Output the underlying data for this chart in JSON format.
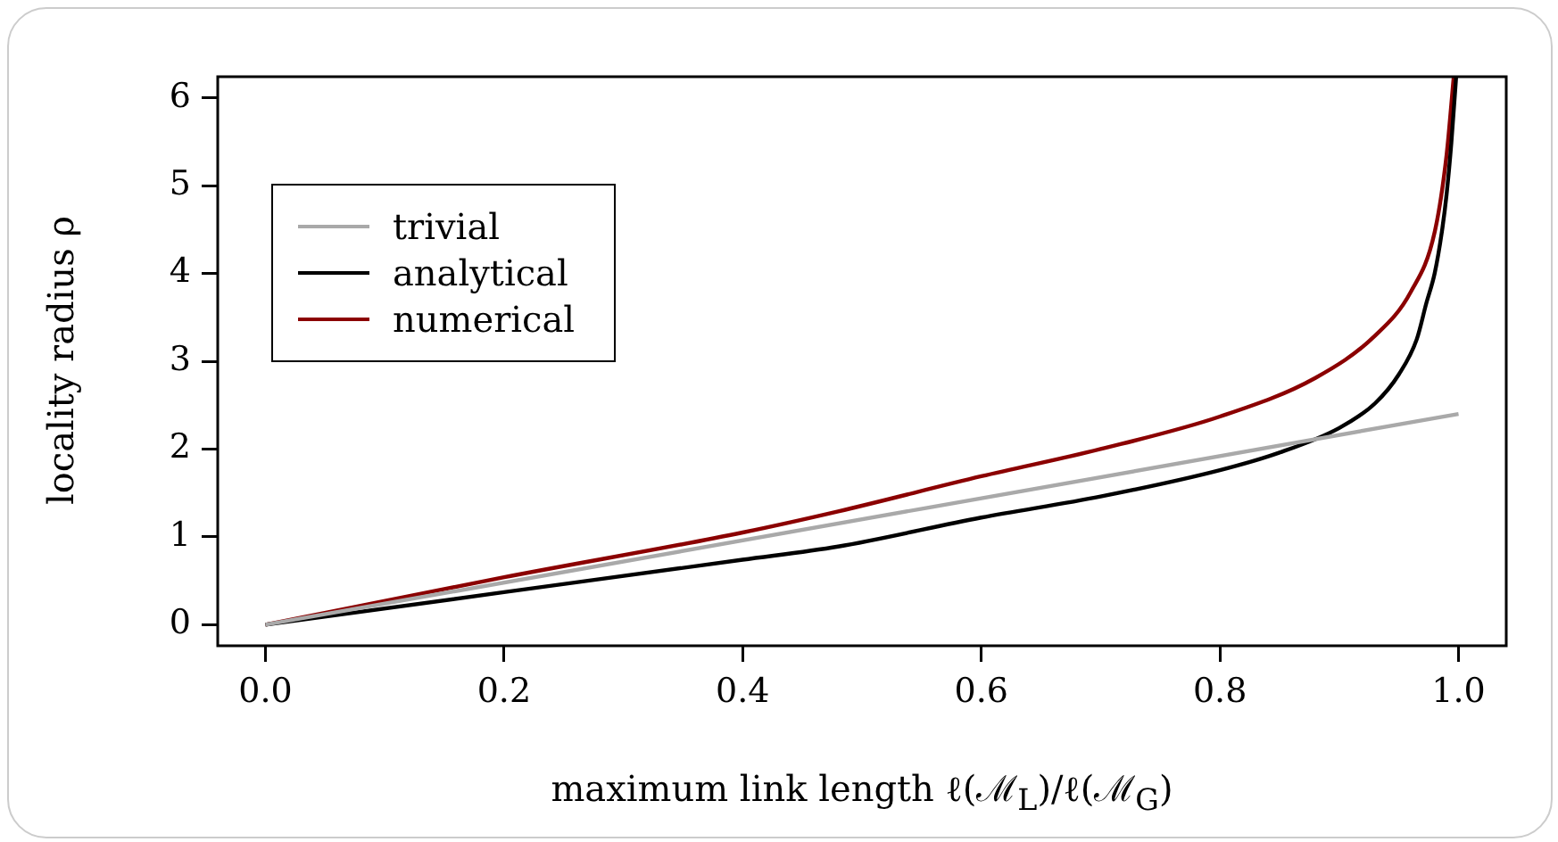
{
  "chart_data": {
    "type": "line",
    "xlabel": "maximum link length ℓ(ℳ$_{L}$)/ℓ(ℳ$_{G}$)",
    "ylabel": "locality radius ρ",
    "xlim": [
      -0.04,
      1.04
    ],
    "xticks": [
      {
        "value": 0,
        "label": "0.0"
      },
      {
        "value": 0.2,
        "label": "0.2"
      },
      {
        "value": 0.4,
        "label": "0.4"
      },
      {
        "value": 0.6,
        "label": "0.6"
      },
      {
        "value": 0.8,
        "label": "0.8"
      },
      {
        "value": 1,
        "label": "1.0"
      }
    ],
    "ylim": [
      -0.24,
      6.24
    ],
    "yticks": [
      0,
      1,
      2,
      3,
      4,
      5,
      6
    ],
    "grid": false,
    "legend": "top left",
    "marker": "none",
    "line_style": "solid",
    "series": [
      {
        "name": "trivial",
        "color": "#a9a9a9",
        "x": [
          0,
          1
        ],
        "values": [
          0,
          2.4
        ]
      },
      {
        "name": "analytical",
        "color": "#000000",
        "x": [
          0,
          0.2,
          0.4,
          0.48,
          0.6,
          0.7,
          0.8,
          0.85,
          0.9,
          0.93,
          0.95,
          0.965,
          0.973,
          0.98,
          0.986,
          0.99,
          0.994,
          0.998
        ],
        "values": [
          0,
          0.37,
          0.74,
          0.89,
          1.22,
          1.46,
          1.76,
          1.96,
          2.24,
          2.52,
          2.85,
          3.25,
          3.66,
          4.0,
          4.47,
          4.9,
          5.49,
          6.24
        ]
      },
      {
        "name": "numerical",
        "color": "#8b0000",
        "x": [
          0,
          0.2,
          0.4,
          0.48,
          0.6,
          0.7,
          0.8,
          0.88,
          0.93,
          0.96,
          0.98,
          0.99,
          0.996
        ],
        "values": [
          0,
          0.54,
          1.05,
          1.29,
          1.69,
          2.0,
          2.37,
          2.81,
          3.29,
          3.79,
          4.47,
          5.35,
          6.24
        ]
      }
    ]
  }
}
